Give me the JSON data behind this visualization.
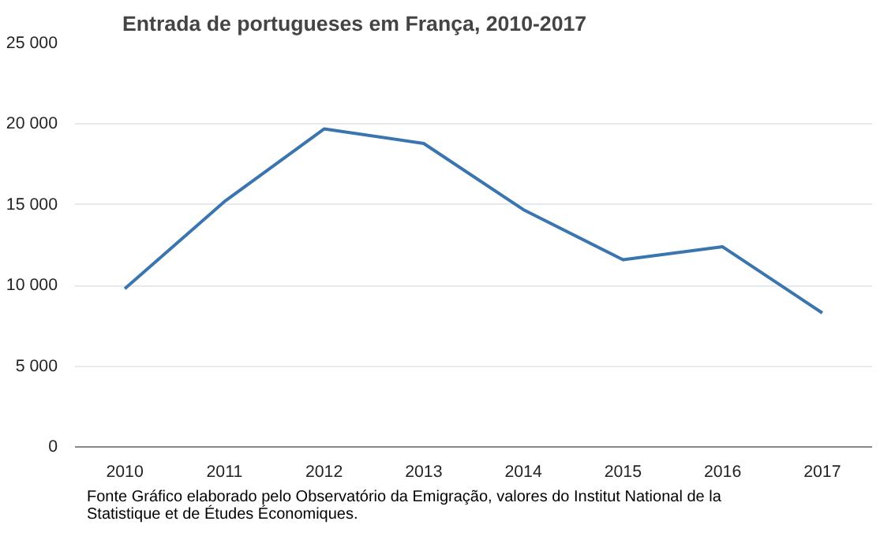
{
  "chart_data": {
    "type": "line",
    "title": "Entrada de portugueses em França, 2010-2017",
    "categories": [
      "2010",
      "2011",
      "2012",
      "2013",
      "2014",
      "2015",
      "2016",
      "2017"
    ],
    "series": [
      {
        "color": "#3a75b0",
        "values": [
          9800,
          15200,
          19700,
          18800,
          14700,
          11600,
          12400,
          8300
        ]
      }
    ],
    "ylim": [
      0,
      25000
    ],
    "yticks": [
      0,
      {
        "value": 5000,
        "label": "5 000"
      },
      {
        "value": 10000,
        "label": "10 000"
      },
      {
        "value": 15000,
        "label": "15 000"
      },
      {
        "value": 20000,
        "label": "20 000"
      },
      {
        "value": 25000,
        "label": "25 000"
      }
    ],
    "grid": "y",
    "marker": "none",
    "line_style": "solid",
    "annotations": [
      "Fonte  Gráfico elaborado pelo Observatório da Emigração, valores do Institut National de la Statistique et de Études Économiques."
    ]
  }
}
